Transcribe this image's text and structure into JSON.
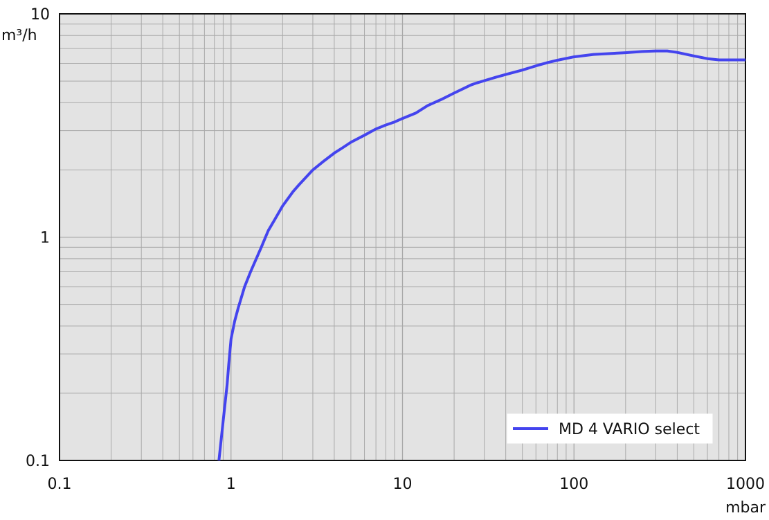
{
  "chart_data": {
    "type": "line",
    "x_scale": "log",
    "y_scale": "log",
    "xlim": [
      0.1,
      1000
    ],
    "ylim": [
      0.1,
      10
    ],
    "x_ticks": [
      {
        "value": 0.1,
        "label": "0.1"
      },
      {
        "value": 1,
        "label": "1"
      },
      {
        "value": 10,
        "label": "10"
      },
      {
        "value": 100,
        "label": "100"
      },
      {
        "value": 1000,
        "label": "1000"
      }
    ],
    "y_ticks": [
      {
        "value": 0.1,
        "label": "0.1"
      },
      {
        "value": 1,
        "label": "1"
      },
      {
        "value": 10,
        "label": "10"
      }
    ],
    "xunit": "mbar",
    "yunit": "m³/h",
    "grid": true,
    "legend_position": "bottom-right",
    "colors": {
      "plot_background": "#e3e3e3",
      "grid_line": "#a9a9a9",
      "axis_frame": "#111111",
      "series_line": "#4444ee"
    },
    "series": [
      {
        "name": "MD 4 VARIO select",
        "x": [
          0.85,
          0.9,
          0.95,
          0.97,
          1.0,
          1.05,
          1.1,
          1.2,
          1.3,
          1.5,
          1.65,
          1.8,
          2.0,
          2.3,
          2.5,
          3.0,
          3.5,
          4.0,
          4.5,
          5.0,
          6.0,
          7.0,
          8.0,
          9.0,
          10,
          12,
          14,
          17,
          20,
          23,
          25,
          27,
          30,
          35,
          40,
          50,
          60,
          70,
          80,
          100,
          130,
          200,
          250,
          300,
          350,
          400,
          500,
          600,
          700,
          1000
        ],
        "y": [
          0.1,
          0.15,
          0.22,
          0.27,
          0.35,
          0.42,
          0.48,
          0.6,
          0.7,
          0.9,
          1.07,
          1.2,
          1.38,
          1.6,
          1.72,
          2.0,
          2.2,
          2.38,
          2.52,
          2.66,
          2.86,
          3.05,
          3.18,
          3.28,
          3.4,
          3.6,
          3.88,
          4.15,
          4.42,
          4.65,
          4.8,
          4.9,
          5.02,
          5.2,
          5.35,
          5.6,
          5.85,
          6.05,
          6.2,
          6.42,
          6.58,
          6.7,
          6.78,
          6.82,
          6.82,
          6.72,
          6.48,
          6.3,
          6.22,
          6.22
        ]
      }
    ]
  }
}
